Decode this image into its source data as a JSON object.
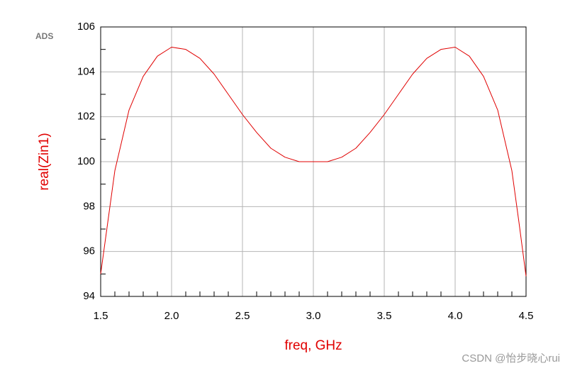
{
  "chart_data": {
    "type": "line",
    "logo": "ADS",
    "xlabel": "freq, GHz",
    "ylabel": "real(Zin1)",
    "watermark": "CSDN @怡步晓心rui",
    "x": [
      1.5,
      1.55,
      1.6,
      1.7,
      1.8,
      1.9,
      2.0,
      2.1,
      2.2,
      2.3,
      2.4,
      2.5,
      2.6,
      2.7,
      2.8,
      2.9,
      3.0,
      3.1,
      3.2,
      3.3,
      3.4,
      3.5,
      3.6,
      3.7,
      3.8,
      3.9,
      4.0,
      4.1,
      4.2,
      4.3,
      4.4,
      4.45,
      4.5
    ],
    "values": [
      95.0,
      97.3,
      99.6,
      102.3,
      103.8,
      104.7,
      105.1,
      105.0,
      104.6,
      103.9,
      103.0,
      102.1,
      101.3,
      100.6,
      100.2,
      100.0,
      100.0,
      100.0,
      100.2,
      100.6,
      101.3,
      102.1,
      103.0,
      103.9,
      104.6,
      105.0,
      105.1,
      104.7,
      103.8,
      102.3,
      99.6,
      97.3,
      94.9
    ],
    "color": "#e00000",
    "label_color": "#e00000",
    "xlim": [
      1.5,
      4.5
    ],
    "ylim": [
      94,
      106
    ],
    "xticks": [
      1.5,
      {
        "value": 2,
        "label": "2.0"
      },
      2.5,
      {
        "value": 3,
        "label": "3.0"
      },
      3.5,
      {
        "value": 4,
        "label": "4.0"
      },
      4.5
    ],
    "yticks": [
      94,
      96,
      98,
      100,
      102,
      104,
      106
    ],
    "x_minor_ticks": [
      1.6,
      1.7,
      1.8,
      1.9,
      2.1,
      2.2,
      2.3,
      2.4,
      2.6,
      2.7,
      2.8,
      2.9,
      3.1,
      3.2,
      3.3,
      3.4,
      3.6,
      3.7,
      3.8,
      3.9,
      4.1,
      4.2,
      4.3,
      4.4
    ],
    "y_minor_ticks": [
      95,
      97,
      99,
      101,
      103,
      105
    ],
    "grid": true
  }
}
